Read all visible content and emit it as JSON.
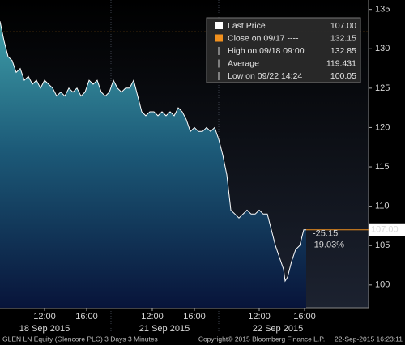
{
  "chart_data": {
    "type": "area",
    "x": [
      0,
      5,
      10,
      15,
      20,
      25,
      30,
      35,
      40,
      45,
      50,
      55,
      60,
      65,
      70,
      75,
      80,
      85,
      90,
      95,
      100,
      105,
      110,
      115,
      120,
      125,
      130,
      135,
      140,
      145,
      150,
      155,
      160,
      165,
      170,
      175,
      180,
      185,
      190,
      195,
      200,
      205,
      210,
      215,
      220,
      225,
      230,
      235,
      240,
      245,
      250,
      255,
      260,
      265,
      270,
      275,
      280,
      285,
      290,
      295,
      300,
      305,
      310,
      315,
      320,
      325,
      330,
      335,
      340,
      345,
      350,
      352,
      355,
      360,
      365,
      370,
      375,
      378
    ],
    "series": [
      {
        "name": "Last Price",
        "color": "#ffffff",
        "values": [
          133.5,
          131,
          129,
          128.5,
          127,
          127.5,
          126,
          126.5,
          125.5,
          126,
          125,
          126,
          125.5,
          125,
          124,
          124.5,
          124,
          125,
          124.5,
          125,
          124,
          124.5,
          126,
          125.5,
          126,
          124.5,
          124,
          124.5,
          126,
          125,
          124.5,
          125,
          125,
          126,
          124,
          122,
          121.5,
          122,
          122,
          121.5,
          122,
          121.5,
          122,
          121.5,
          122.5,
          122,
          121,
          119.5,
          120,
          119.5,
          119.5,
          120,
          119.5,
          120,
          118.5,
          116.5,
          114,
          109.5,
          109,
          108.5,
          109,
          109.5,
          109,
          109,
          109.5,
          109,
          109,
          107,
          105,
          103.5,
          102,
          100.5,
          101,
          103,
          104.5,
          105,
          107,
          107
        ]
      }
    ],
    "xlim": [
      0,
      455
    ],
    "xticks": [
      {
        "value": 55,
        "label": "12:00"
      },
      {
        "value": 107,
        "label": "16:00"
      },
      {
        "value": 188,
        "label": "12:00"
      },
      {
        "value": 240,
        "label": "16:00"
      },
      {
        "value": 320,
        "label": "12:00"
      },
      {
        "value": 376,
        "label": "16:00"
      }
    ],
    "date_labels": [
      {
        "value": 55,
        "label": "18 Sep 2015"
      },
      {
        "value": 203,
        "label": "21 Sep 2015"
      },
      {
        "value": 343,
        "label": "22 Sep 2015"
      }
    ],
    "day_breaks": [
      137,
      270
    ],
    "ylim": [
      97.1,
      136.2
    ],
    "yticks": [
      100,
      105,
      110,
      115,
      120,
      125,
      130,
      135
    ],
    "legend": [
      {
        "label": "Last Price",
        "value": 107,
        "value_label": "107.00",
        "color": "#ffffff"
      },
      {
        "label": "Close on 09/17 ----",
        "value": 132.15,
        "color": "#f0901e"
      },
      {
        "label": "High on 09/18 09:00",
        "value": 132.85,
        "color": "#d8d8d8"
      },
      {
        "label": "Average",
        "value": 119.431,
        "color": "#d8d8d8"
      },
      {
        "label": "Low on 09/22 14:24",
        "value": 100.05,
        "color": "#d8d8d8"
      }
    ],
    "last_tag": {
      "value": 107,
      "label": "107.00",
      "color": "#f0901e"
    },
    "change": {
      "value": -25.15
    },
    "change_pct": {
      "value": -19.03,
      "label": "-19.03%"
    },
    "footer": {
      "left": "GLEN LN Equity (Glencore PLC) 3 Days 3 Minutes",
      "center": "Copyright© 2015 Bloomberg Finance L.P.",
      "right": "22-Sep-2015 16:23:11"
    }
  }
}
